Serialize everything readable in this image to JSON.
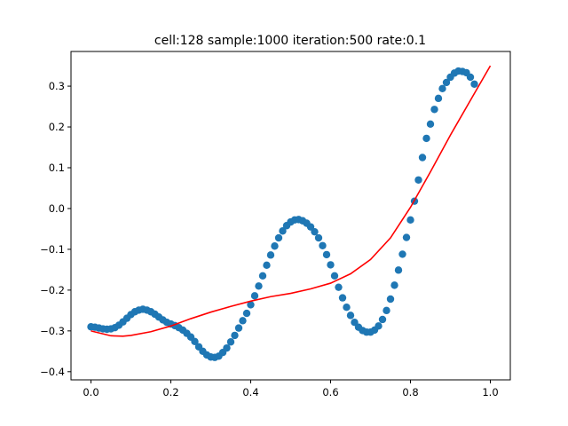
{
  "chart_data": {
    "type": "scatter",
    "title": "cell:128 sample:1000 iteration:500 rate:0.1",
    "xlabel": "",
    "ylabel": "",
    "xlim": [
      -0.05,
      1.05
    ],
    "ylim": [
      -0.42,
      0.385
    ],
    "x_ticks": [
      0.0,
      0.2,
      0.4,
      0.6,
      0.8,
      1.0
    ],
    "x_tick_labels": [
      "0.0",
      "0.2",
      "0.4",
      "0.6",
      "0.8",
      "1.0"
    ],
    "y_ticks": [
      -0.4,
      -0.3,
      -0.2,
      -0.1,
      0.0,
      0.1,
      0.2,
      0.3
    ],
    "y_tick_labels": [
      "−0.4",
      "−0.3",
      "−0.2",
      "−0.1",
      "0.0",
      "0.1",
      "0.2",
      "0.3"
    ],
    "grid": false,
    "series": [
      {
        "kind": "scatter",
        "color": "#1f77b4",
        "points": [
          [
            0.0,
            -0.29
          ],
          [
            0.01,
            -0.291
          ],
          [
            0.02,
            -0.293
          ],
          [
            0.03,
            -0.295
          ],
          [
            0.04,
            -0.296
          ],
          [
            0.05,
            -0.295
          ],
          [
            0.06,
            -0.292
          ],
          [
            0.07,
            -0.286
          ],
          [
            0.08,
            -0.278
          ],
          [
            0.09,
            -0.269
          ],
          [
            0.1,
            -0.26
          ],
          [
            0.11,
            -0.253
          ],
          [
            0.12,
            -0.249
          ],
          [
            0.13,
            -0.247
          ],
          [
            0.14,
            -0.249
          ],
          [
            0.15,
            -0.253
          ],
          [
            0.16,
            -0.259
          ],
          [
            0.17,
            -0.266
          ],
          [
            0.18,
            -0.273
          ],
          [
            0.19,
            -0.279
          ],
          [
            0.2,
            -0.283
          ],
          [
            0.21,
            -0.287
          ],
          [
            0.22,
            -0.292
          ],
          [
            0.23,
            -0.298
          ],
          [
            0.24,
            -0.306
          ],
          [
            0.25,
            -0.315
          ],
          [
            0.26,
            -0.326
          ],
          [
            0.27,
            -0.339
          ],
          [
            0.28,
            -0.35
          ],
          [
            0.29,
            -0.359
          ],
          [
            0.3,
            -0.364
          ],
          [
            0.31,
            -0.365
          ],
          [
            0.32,
            -0.362
          ],
          [
            0.33,
            -0.353
          ],
          [
            0.34,
            -0.342
          ],
          [
            0.35,
            -0.327
          ],
          [
            0.36,
            -0.311
          ],
          [
            0.37,
            -0.293
          ],
          [
            0.38,
            -0.275
          ],
          [
            0.39,
            -0.257
          ],
          [
            0.4,
            -0.236
          ],
          [
            0.41,
            -0.214
          ],
          [
            0.42,
            -0.19
          ],
          [
            0.43,
            -0.165
          ],
          [
            0.44,
            -0.139
          ],
          [
            0.45,
            -0.114
          ],
          [
            0.46,
            -0.092
          ],
          [
            0.47,
            -0.072
          ],
          [
            0.48,
            -0.055
          ],
          [
            0.49,
            -0.042
          ],
          [
            0.5,
            -0.033
          ],
          [
            0.51,
            -0.028
          ],
          [
            0.52,
            -0.027
          ],
          [
            0.53,
            -0.03
          ],
          [
            0.54,
            -0.036
          ],
          [
            0.55,
            -0.045
          ],
          [
            0.56,
            -0.057
          ],
          [
            0.57,
            -0.072
          ],
          [
            0.58,
            -0.091
          ],
          [
            0.59,
            -0.113
          ],
          [
            0.6,
            -0.138
          ],
          [
            0.61,
            -0.165
          ],
          [
            0.62,
            -0.193
          ],
          [
            0.63,
            -0.219
          ],
          [
            0.64,
            -0.242
          ],
          [
            0.65,
            -0.262
          ],
          [
            0.66,
            -0.279
          ],
          [
            0.67,
            -0.291
          ],
          [
            0.68,
            -0.299
          ],
          [
            0.69,
            -0.303
          ],
          [
            0.7,
            -0.303
          ],
          [
            0.71,
            -0.298
          ],
          [
            0.72,
            -0.288
          ],
          [
            0.73,
            -0.272
          ],
          [
            0.74,
            -0.25
          ],
          [
            0.75,
            -0.222
          ],
          [
            0.76,
            -0.188
          ],
          [
            0.77,
            -0.151
          ],
          [
            0.78,
            -0.112
          ],
          [
            0.79,
            -0.071
          ],
          [
            0.8,
            -0.028
          ],
          [
            0.81,
            0.018
          ],
          [
            0.82,
            0.07
          ],
          [
            0.83,
            0.125
          ],
          [
            0.84,
            0.172
          ],
          [
            0.85,
            0.207
          ],
          [
            0.86,
            0.243
          ],
          [
            0.87,
            0.27
          ],
          [
            0.88,
            0.294
          ],
          [
            0.89,
            0.309
          ],
          [
            0.9,
            0.322
          ],
          [
            0.91,
            0.332
          ],
          [
            0.92,
            0.337
          ],
          [
            0.93,
            0.336
          ],
          [
            0.94,
            0.333
          ],
          [
            0.95,
            0.322
          ],
          [
            0.96,
            0.305
          ]
        ]
      },
      {
        "kind": "line",
        "color": "#ff0000",
        "points": [
          [
            0.0,
            -0.3
          ],
          [
            0.05,
            -0.312
          ],
          [
            0.08,
            -0.313
          ],
          [
            0.1,
            -0.311
          ],
          [
            0.15,
            -0.302
          ],
          [
            0.2,
            -0.288
          ],
          [
            0.25,
            -0.27
          ],
          [
            0.3,
            -0.254
          ],
          [
            0.35,
            -0.24
          ],
          [
            0.4,
            -0.227
          ],
          [
            0.45,
            -0.216
          ],
          [
            0.5,
            -0.208
          ],
          [
            0.55,
            -0.197
          ],
          [
            0.6,
            -0.183
          ],
          [
            0.65,
            -0.16
          ],
          [
            0.7,
            -0.125
          ],
          [
            0.75,
            -0.072
          ],
          [
            0.8,
            0.003
          ],
          [
            0.85,
            0.09
          ],
          [
            0.9,
            0.18
          ],
          [
            0.95,
            0.265
          ],
          [
            1.0,
            0.35
          ]
        ]
      }
    ]
  }
}
